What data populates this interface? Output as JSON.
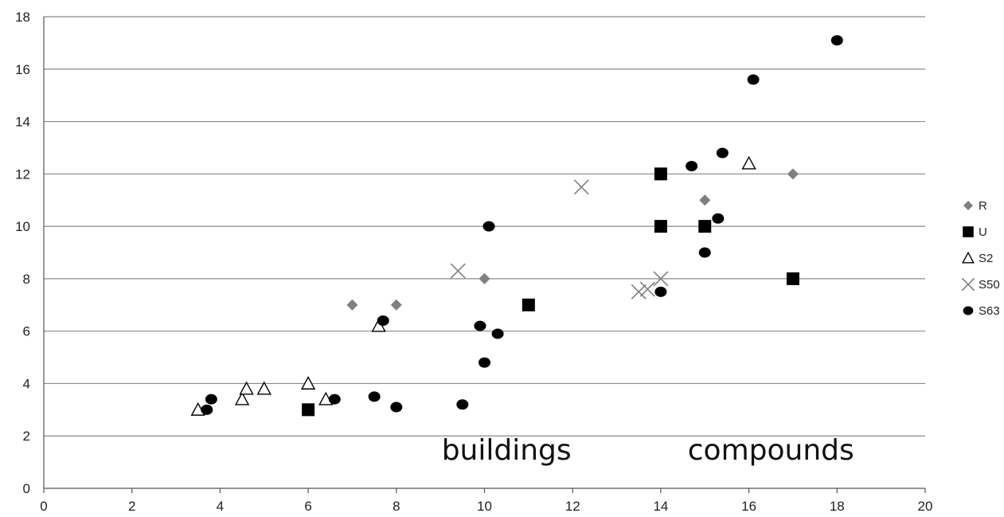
{
  "chart_data": {
    "type": "scatter",
    "title": "",
    "xlabel": "",
    "ylabel": "",
    "xlim": [
      0,
      20
    ],
    "ylim": [
      0,
      18
    ],
    "x_ticks": [
      "0",
      "2",
      "4",
      "6",
      "8",
      "10",
      "12",
      "14",
      "16",
      "18",
      "20"
    ],
    "y_ticks": [
      "0",
      "2",
      "4",
      "6",
      "8",
      "10",
      "12",
      "14",
      "16",
      "18"
    ],
    "grid": "horizontal",
    "legend_position": "right",
    "annotations": [
      {
        "text": "buildings",
        "x": 10.5,
        "y": 1.1
      },
      {
        "text": "compounds",
        "x": 16.5,
        "y": 1.1
      }
    ],
    "series": [
      {
        "name": "R",
        "marker": "diamond",
        "color": "#808080",
        "points": [
          [
            7,
            7
          ],
          [
            8,
            7
          ],
          [
            10,
            8
          ],
          [
            15,
            11
          ],
          [
            17,
            12
          ]
        ]
      },
      {
        "name": "U",
        "marker": "square",
        "color": "#000000",
        "points": [
          [
            6,
            3
          ],
          [
            11,
            7
          ],
          [
            14,
            12
          ],
          [
            14,
            10
          ],
          [
            15,
            10
          ],
          [
            17,
            8
          ]
        ]
      },
      {
        "name": "S2",
        "marker": "triangle-open",
        "color": "#000000",
        "points": [
          [
            3.5,
            3
          ],
          [
            4.5,
            3.4
          ],
          [
            4.6,
            3.8
          ],
          [
            5,
            3.8
          ],
          [
            6,
            4
          ],
          [
            6.4,
            3.4
          ],
          [
            7.6,
            6.2
          ],
          [
            16,
            12.4
          ]
        ]
      },
      {
        "name": "S50",
        "marker": "x",
        "color": "#808080",
        "points": [
          [
            9.4,
            8.3
          ],
          [
            12.2,
            11.5
          ],
          [
            13.5,
            7.5
          ],
          [
            13.7,
            7.6
          ],
          [
            14,
            8
          ]
        ]
      },
      {
        "name": "S63",
        "marker": "circle",
        "color": "#000000",
        "points": [
          [
            3.7,
            3
          ],
          [
            3.8,
            3.4
          ],
          [
            6.6,
            3.4
          ],
          [
            7.5,
            3.5
          ],
          [
            7.7,
            6.4
          ],
          [
            8,
            3.1
          ],
          [
            9.5,
            3.2
          ],
          [
            9.9,
            6.2
          ],
          [
            10,
            4.8
          ],
          [
            10.1,
            10
          ],
          [
            10.3,
            5.9
          ],
          [
            14,
            7.5
          ],
          [
            14.7,
            12.3
          ],
          [
            15,
            9
          ],
          [
            15.3,
            10.3
          ],
          [
            15.4,
            12.8
          ],
          [
            16.1,
            15.6
          ],
          [
            18,
            17.1
          ]
        ]
      }
    ]
  }
}
